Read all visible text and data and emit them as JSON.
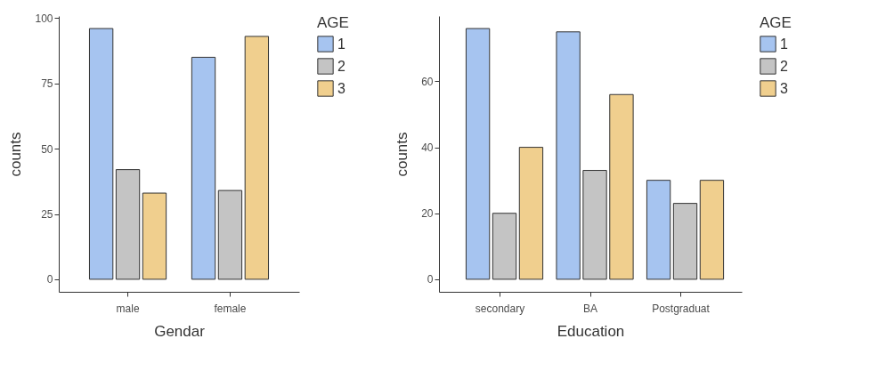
{
  "chart_data": [
    {
      "type": "bar",
      "xlabel": "Gendar",
      "ylabel": "counts",
      "legend_title": "AGE",
      "categories": [
        "male",
        "female"
      ],
      "series": [
        {
          "name": "1",
          "color": "#a6c4f0",
          "values": [
            96,
            85
          ]
        },
        {
          "name": "2",
          "color": "#c4c4c4",
          "values": [
            42,
            34
          ]
        },
        {
          "name": "3",
          "color": "#f0cf8e",
          "values": [
            33,
            93
          ]
        }
      ],
      "ylim": [
        -4.8,
        100.8
      ],
      "yticks": [
        0,
        25,
        50,
        75,
        100
      ],
      "grid": false,
      "legend": "right"
    },
    {
      "type": "bar",
      "xlabel": "Education",
      "ylabel": "counts",
      "legend_title": "AGE",
      "categories": [
        "secondary",
        "BA",
        "Postgraduat"
      ],
      "series": [
        {
          "name": "1",
          "color": "#a6c4f0",
          "values": [
            76,
            75,
            30
          ]
        },
        {
          "name": "2",
          "color": "#c4c4c4",
          "values": [
            20,
            33,
            23
          ]
        },
        {
          "name": "3",
          "color": "#f0cf8e",
          "values": [
            40,
            56,
            30
          ]
        }
      ],
      "ylim": [
        -3.8,
        79.8
      ],
      "yticks": [
        0,
        20,
        40,
        60
      ],
      "grid": false,
      "legend": "right"
    }
  ]
}
